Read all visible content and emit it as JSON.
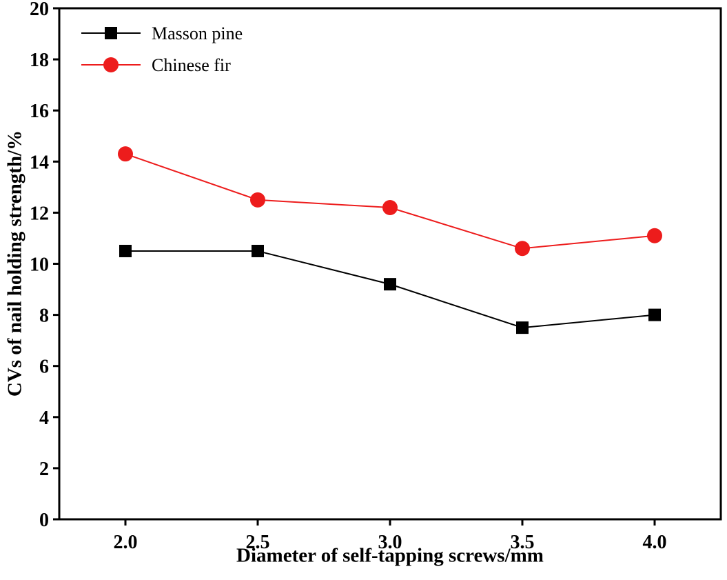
{
  "chart_data": {
    "type": "line",
    "title": "",
    "xlabel": "Diameter of self-tapping screws/mm",
    "ylabel": "CVs of nail holding strength/%",
    "x": [
      2.0,
      2.5,
      3.0,
      3.5,
      4.0
    ],
    "xticks": [
      2.0,
      2.5,
      3.0,
      3.5,
      4.0
    ],
    "xlim": [
      1.75,
      4.25
    ],
    "ylim": [
      0,
      20
    ],
    "ytick_step": 2,
    "grid": false,
    "legend_position": "top-left",
    "axis_color": "#000000",
    "series": [
      {
        "name": "Masson pine",
        "values": [
          10.5,
          10.5,
          9.2,
          7.5,
          8.0
        ],
        "color": "#000000",
        "marker": "square"
      },
      {
        "name": "Chinese fir",
        "values": [
          14.3,
          12.5,
          12.2,
          10.6,
          11.1
        ],
        "color": "#ed1c1c",
        "marker": "circle"
      }
    ]
  }
}
